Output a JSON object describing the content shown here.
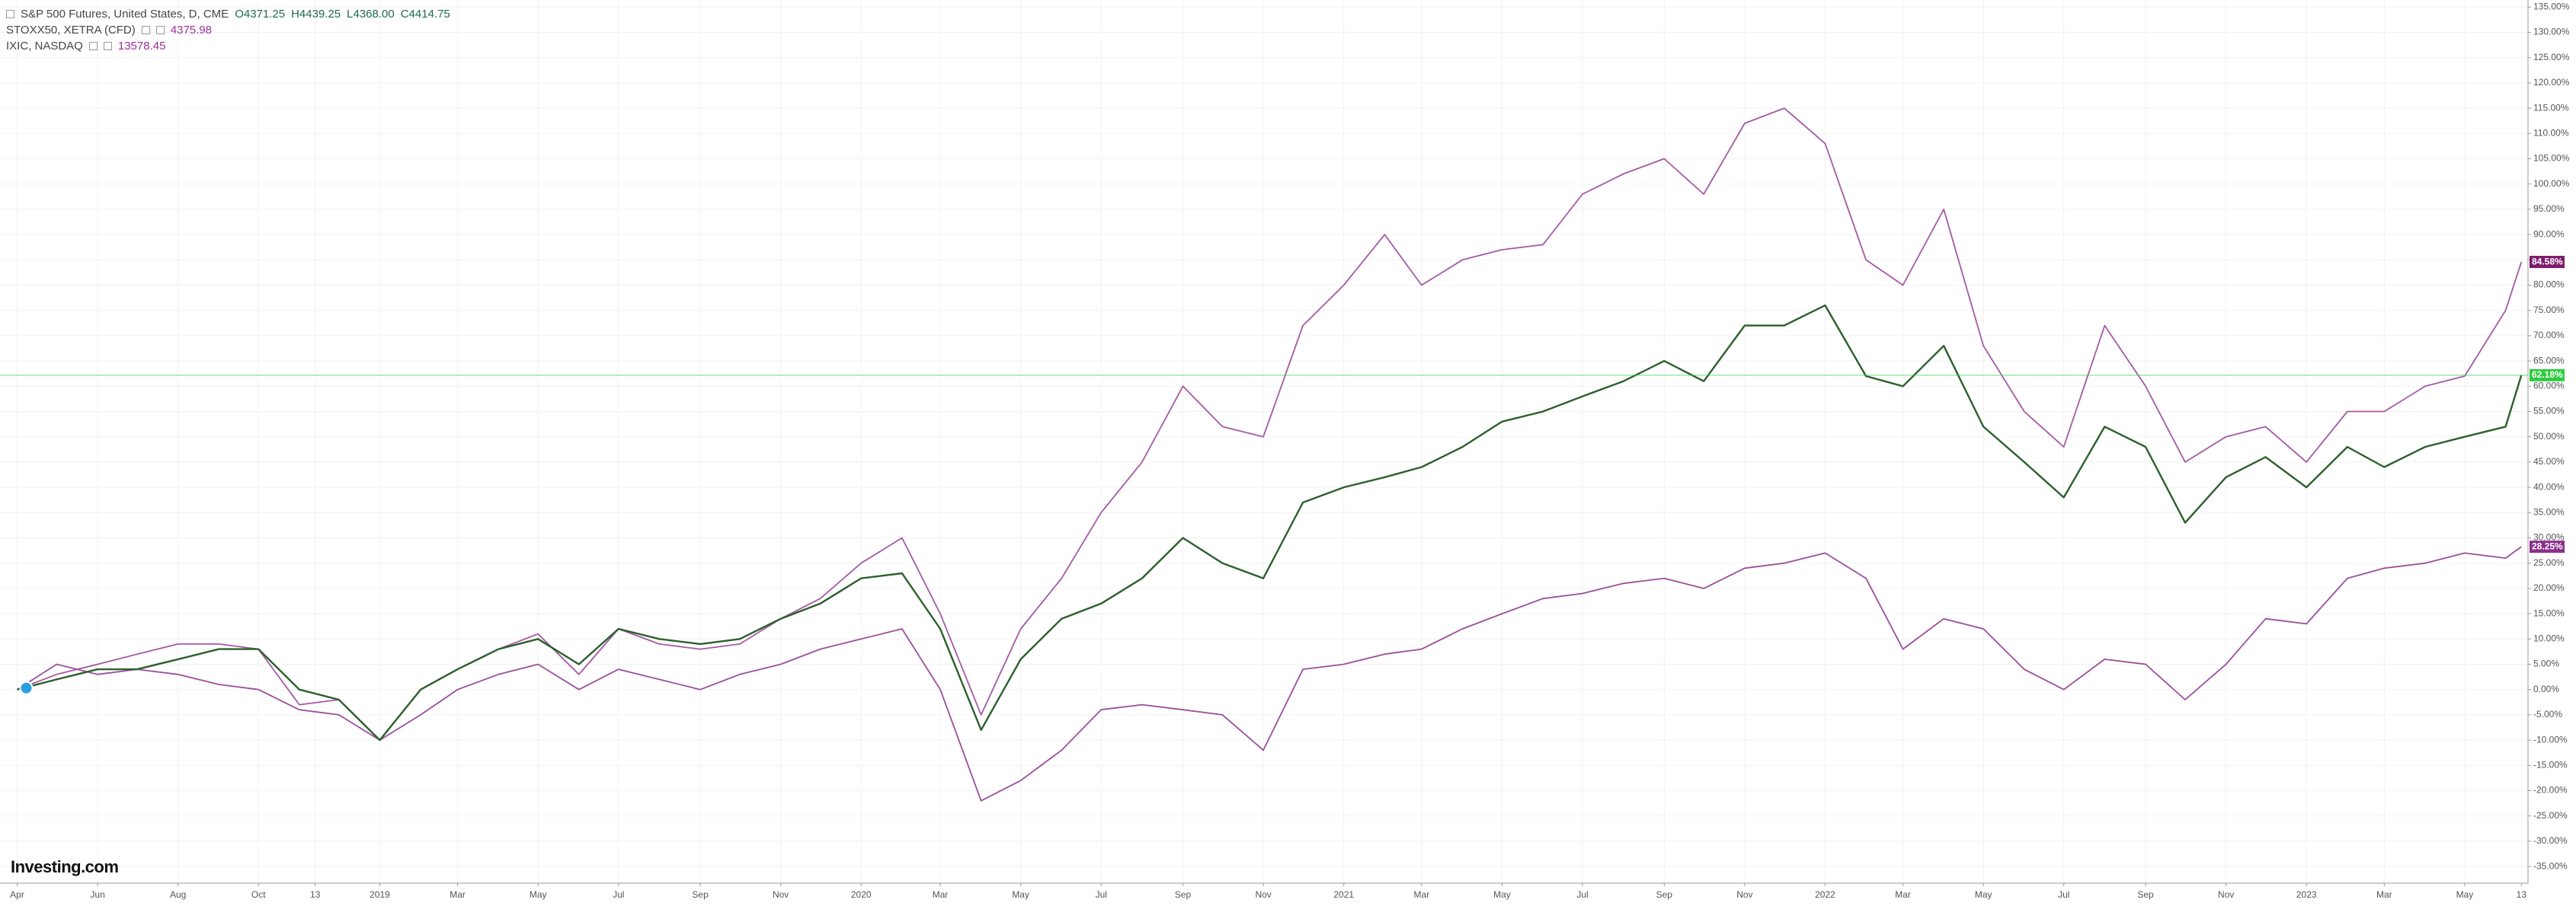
{
  "chart_data": {
    "type": "line",
    "watermark": "Investing.com",
    "ohlc": [
      "O4371.25",
      "H4439.25",
      "L4368.00",
      "C4414.75"
    ],
    "x": [
      "2018-04-01",
      "2018-05-01",
      "2018-06-01",
      "2018-07-01",
      "2018-08-01",
      "2018-09-01",
      "2018-10-01",
      "2018-11-01",
      "2018-12-01",
      "2019-01-01",
      "2019-02-01",
      "2019-03-01",
      "2019-04-01",
      "2019-05-01",
      "2019-06-01",
      "2019-07-01",
      "2019-08-01",
      "2019-09-01",
      "2019-10-01",
      "2019-11-01",
      "2019-12-01",
      "2020-01-01",
      "2020-02-01",
      "2020-03-01",
      "2020-04-01",
      "2020-05-01",
      "2020-06-01",
      "2020-07-01",
      "2020-08-01",
      "2020-09-01",
      "2020-10-01",
      "2020-11-01",
      "2020-12-01",
      "2021-01-01",
      "2021-02-01",
      "2021-03-01",
      "2021-04-01",
      "2021-05-01",
      "2021-06-01",
      "2021-07-01",
      "2021-08-01",
      "2021-09-01",
      "2021-10-01",
      "2021-11-01",
      "2021-12-01",
      "2022-01-01",
      "2022-02-01",
      "2022-03-01",
      "2022-04-01",
      "2022-05-01",
      "2022-06-01",
      "2022-07-01",
      "2022-08-01",
      "2022-09-01",
      "2022-10-01",
      "2022-11-01",
      "2022-12-01",
      "2023-01-01",
      "2023-02-01",
      "2023-03-01",
      "2023-04-01",
      "2023-05-01",
      "2023-06-01",
      "2023-06-13"
    ],
    "series": [
      {
        "name": "S&P 500 Futures, United States, D, CME",
        "color": "#2d5f2d",
        "label_color": "#2ecc40",
        "last_label": "62.18%",
        "values": [
          0,
          2,
          4,
          4,
          6,
          8,
          8,
          0,
          -2,
          -10,
          0,
          4,
          8,
          10,
          5,
          12,
          10,
          9,
          10,
          14,
          17,
          22,
          23,
          12,
          -8,
          6,
          14,
          17,
          22,
          30,
          25,
          22,
          37,
          40,
          42,
          44,
          48,
          53,
          55,
          58,
          61,
          65,
          61,
          72,
          72,
          76,
          62,
          60,
          68,
          52,
          45,
          38,
          52,
          48,
          33,
          42,
          46,
          40,
          48,
          44,
          48,
          50,
          52,
          62.18
        ]
      },
      {
        "name": "STOXX50, XETRA (CFD)",
        "last_price": "4375.98",
        "color": "#9b4f9b",
        "label_color": "#8b2f8b",
        "last_label": "28.25%",
        "values": [
          0,
          5,
          3,
          4,
          3,
          1,
          0,
          -4,
          -5,
          -10,
          -5,
          0,
          3,
          5,
          0,
          4,
          2,
          0,
          3,
          5,
          8,
          10,
          12,
          0,
          -22,
          -18,
          -12,
          -4,
          -3,
          -4,
          -5,
          -12,
          4,
          5,
          7,
          8,
          12,
          15,
          18,
          19,
          21,
          22,
          20,
          24,
          25,
          27,
          22,
          8,
          14,
          12,
          4,
          0,
          6,
          5,
          -2,
          5,
          14,
          13,
          22,
          24,
          25,
          27,
          26,
          28.25
        ]
      },
      {
        "name": "IXIC, NASDAQ",
        "last_price": "13578.45",
        "color": "#a45aa4",
        "label_color": "#7d1a6b",
        "last_label": "84.58%",
        "values": [
          0,
          3,
          5,
          7,
          9,
          9,
          8,
          -3,
          -2,
          -10,
          0,
          4,
          8,
          11,
          3,
          12,
          9,
          8,
          9,
          14,
          18,
          25,
          30,
          15,
          -5,
          12,
          22,
          35,
          45,
          60,
          52,
          50,
          72,
          80,
          90,
          80,
          85,
          87,
          88,
          98,
          102,
          105,
          98,
          112,
          115,
          108,
          85,
          80,
          95,
          68,
          55,
          48,
          72,
          60,
          45,
          50,
          52,
          45,
          55,
          55,
          60,
          62,
          75,
          84.58
        ]
      }
    ],
    "xlim": [
      "2018-03-19",
      "2023-06-18"
    ],
    "xticks": [
      {
        "value": "2018-04-01",
        "label": "Apr"
      },
      {
        "value": "2018-06-01",
        "label": "Jun"
      },
      {
        "value": "2018-08-01",
        "label": "Aug"
      },
      {
        "value": "2018-10-01",
        "label": "Oct"
      },
      {
        "value": "2018-11-13",
        "label": "13"
      },
      {
        "value": "2019-01-01",
        "label": "2019"
      },
      {
        "value": "2019-03-01",
        "label": "Mar"
      },
      {
        "value": "2019-05-01",
        "label": "May"
      },
      {
        "value": "2019-07-01",
        "label": "Jul"
      },
      {
        "value": "2019-09-01",
        "label": "Sep"
      },
      {
        "value": "2019-11-01",
        "label": "Nov"
      },
      {
        "value": "2020-01-01",
        "label": "2020"
      },
      {
        "value": "2020-03-01",
        "label": "Mar"
      },
      {
        "value": "2020-05-01",
        "label": "May"
      },
      {
        "value": "2020-07-01",
        "label": "Jul"
      },
      {
        "value": "2020-09-01",
        "label": "Sep"
      },
      {
        "value": "2020-11-01",
        "label": "Nov"
      },
      {
        "value": "2021-01-01",
        "label": "2021"
      },
      {
        "value": "2021-03-01",
        "label": "Mar"
      },
      {
        "value": "2021-05-01",
        "label": "May"
      },
      {
        "value": "2021-07-01",
        "label": "Jul"
      },
      {
        "value": "2021-09-01",
        "label": "Sep"
      },
      {
        "value": "2021-11-01",
        "label": "Nov"
      },
      {
        "value": "2022-01-01",
        "label": "2022"
      },
      {
        "value": "2022-03-01",
        "label": "Mar"
      },
      {
        "value": "2022-05-01",
        "label": "May"
      },
      {
        "value": "2022-07-01",
        "label": "Jul"
      },
      {
        "value": "2022-09-01",
        "label": "Sep"
      },
      {
        "value": "2022-11-01",
        "label": "Nov"
      },
      {
        "value": "2023-01-01",
        "label": "2023"
      },
      {
        "value": "2023-03-01",
        "label": "Mar"
      },
      {
        "value": "2023-05-01",
        "label": "May"
      },
      {
        "value": "2023-06-13",
        "label": "13"
      }
    ],
    "ylim": [
      -38.3,
      136.4
    ],
    "yticks": [
      {
        "value": 135,
        "label": "135.00%"
      },
      {
        "value": 130,
        "label": "130.00%"
      },
      {
        "value": 125,
        "label": "125.00%"
      },
      {
        "value": 120,
        "label": "120.00%"
      },
      {
        "value": 115,
        "label": "115.00%"
      },
      {
        "value": 110,
        "label": "110.00%"
      },
      {
        "value": 105,
        "label": "105.00%"
      },
      {
        "value": 100,
        "label": "100.00%"
      },
      {
        "value": 95,
        "label": "95.00%"
      },
      {
        "value": 90,
        "label": "90.00%"
      },
      {
        "value": 85,
        "label": "85.00%"
      },
      {
        "value": 80,
        "label": "80.00%"
      },
      {
        "value": 75,
        "label": "75.00%"
      },
      {
        "value": 70,
        "label": "70.00%"
      },
      {
        "value": 65,
        "label": "65.00%"
      },
      {
        "value": 60,
        "label": "60.00%"
      },
      {
        "value": 55,
        "label": "55.00%"
      },
      {
        "value": 50,
        "label": "50.00%"
      },
      {
        "value": 45,
        "label": "45.00%"
      },
      {
        "value": 40,
        "label": "40.00%"
      },
      {
        "value": 35,
        "label": "35.00%"
      },
      {
        "value": 30,
        "label": "30.00%"
      },
      {
        "value": 25,
        "label": "25.00%"
      },
      {
        "value": 20,
        "label": "20.00%"
      },
      {
        "value": 15,
        "label": "15.00%"
      },
      {
        "value": 10,
        "label": "10.00%"
      },
      {
        "value": 5,
        "label": "5.00%"
      },
      {
        "value": 0,
        "label": "0.00%"
      },
      {
        "value": -5,
        "label": "-5.00%"
      },
      {
        "value": -10,
        "label": "-10.00%"
      },
      {
        "value": -15,
        "label": "-15.00%"
      },
      {
        "value": -20,
        "label": "-20.00%"
      },
      {
        "value": -25,
        "label": "-25.00%"
      },
      {
        "value": -30,
        "label": "-30.00%"
      },
      {
        "value": -35,
        "label": "-35.00%"
      }
    ],
    "grid": true
  }
}
